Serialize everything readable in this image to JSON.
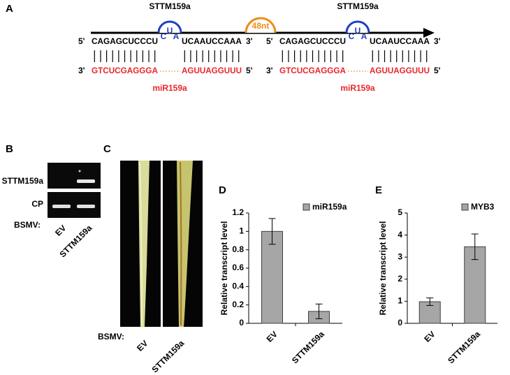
{
  "panels": {
    "a": "A",
    "b": "B",
    "c": "C"
  },
  "diagram": {
    "spacer": "48nt",
    "units": [
      {
        "label": "STTM159a",
        "top_5": "5'",
        "top_left": "CAGAGCUCCCU",
        "bulge": [
          "C",
          "U",
          "A"
        ],
        "top_right": "UCAAUCCAAA",
        "top_3": "3'",
        "bottom_3": "3'",
        "bottom_left": "GTCUCGAGGGA",
        "bottom_right": "AGUUAGGUUU",
        "bottom_5": "5'",
        "mirna": "miR159a"
      },
      {
        "label": "STTM159a",
        "top_5": "5'",
        "top_left": "CAGAGCUCCCU",
        "bulge": [
          "C",
          "U",
          "A"
        ],
        "top_right": "UCAAUCCAAA",
        "top_3": "3'",
        "bottom_3": "3'",
        "bottom_left": "GTCUCGAGGGA",
        "bottom_right": "AGUUAGGUUU",
        "bottom_5": "5'",
        "mirna": "miR159a"
      }
    ]
  },
  "gel": {
    "rows": [
      "STTM159a",
      "CP"
    ],
    "prefix": "BSMV:",
    "lanes": [
      "EV",
      "STTM159a"
    ]
  },
  "photo": {
    "prefix": "BSMV:",
    "lanes": [
      "EV",
      "STTM159a"
    ]
  },
  "chart_data": [
    {
      "type": "bar",
      "panel": "D",
      "y_label": "Relative transcript level",
      "categories": [
        "EV",
        "STTM159a"
      ],
      "series": [
        {
          "name": "miR159a",
          "color": "#a6a6a6",
          "values": [
            1.0,
            0.13
          ],
          "errors": [
            0.14,
            0.08
          ]
        }
      ],
      "ylim": [
        0,
        1.2
      ],
      "yticks": [
        0,
        0.2,
        0.4,
        0.6,
        0.8,
        1,
        1.2
      ]
    },
    {
      "type": "bar",
      "panel": "E",
      "y_label": "Relative transcript level",
      "categories": [
        "EV",
        "STTM159a"
      ],
      "series": [
        {
          "name": "MYB3",
          "color": "#a6a6a6",
          "values": [
            0.98,
            3.47
          ],
          "errors": [
            0.17,
            0.58
          ]
        }
      ],
      "ylim": [
        0,
        5
      ],
      "yticks": [
        0,
        1,
        2,
        3,
        4,
        5
      ]
    }
  ]
}
